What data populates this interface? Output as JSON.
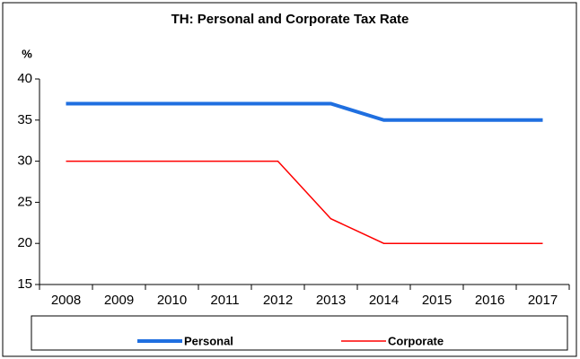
{
  "chart_data": {
    "type": "line",
    "title": "TH: Personal and Corporate Tax Rate",
    "y_label": "%",
    "categories": [
      "2008",
      "2009",
      "2010",
      "2011",
      "2012",
      "2013",
      "2014",
      "2015",
      "2016",
      "2017"
    ],
    "series": [
      {
        "name": "Personal",
        "color": "#1f6fe0",
        "values": [
          37,
          37,
          37,
          37,
          37,
          37,
          35,
          35,
          35,
          35
        ]
      },
      {
        "name": "Corporate",
        "color": "#ff0000",
        "values": [
          30,
          30,
          30,
          30,
          30,
          23,
          20,
          20,
          20,
          20
        ]
      }
    ],
    "ylim": [
      15,
      40
    ],
    "yticks": [
      15,
      20,
      25,
      30,
      35,
      40
    ],
    "grid": false,
    "legend": "bottom"
  }
}
